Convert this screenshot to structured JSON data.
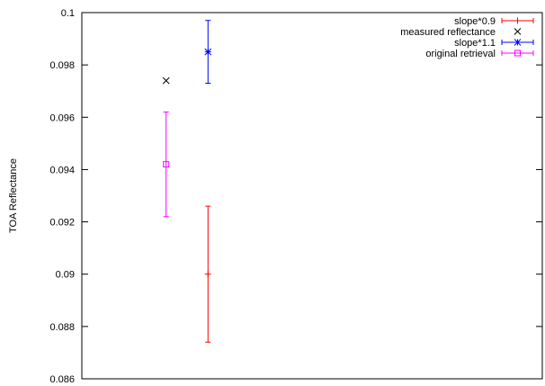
{
  "chart_data": {
    "type": "scatter",
    "title": "",
    "xlabel": "",
    "ylabel": "TOA Reflectance",
    "ylim": [
      0.086,
      0.1
    ],
    "xlim": [
      0,
      1
    ],
    "yticks": [
      0.086,
      0.088,
      0.09,
      0.092,
      0.094,
      0.096,
      0.098,
      0.1
    ],
    "ytick_labels": [
      "0.086",
      "0.088",
      "0.09",
      "0.092",
      "0.094",
      "0.096",
      "0.098",
      "0.1"
    ],
    "grid": false,
    "legend_position": "top-right",
    "series": [
      {
        "name": "slope*0.9",
        "color": "#ff0000",
        "marker": "plus",
        "points": [
          {
            "x": 0.274,
            "y": 0.09,
            "ylow": 0.0874,
            "yhigh": 0.0926
          }
        ]
      },
      {
        "name": "measured reflectance",
        "color": "#000000",
        "marker": "cross",
        "points": [
          {
            "x": 0.183,
            "y": 0.0974
          }
        ]
      },
      {
        "name": "slope*1.1",
        "color": "#0000ff",
        "marker": "star",
        "points": [
          {
            "x": 0.274,
            "y": 0.0985,
            "ylow": 0.0973,
            "yhigh": 0.0997
          }
        ]
      },
      {
        "name": "original retrieval",
        "color": "#ff00ff",
        "marker": "square",
        "points": [
          {
            "x": 0.183,
            "y": 0.0942,
            "ylow": 0.0922,
            "yhigh": 0.0962
          }
        ]
      }
    ]
  }
}
